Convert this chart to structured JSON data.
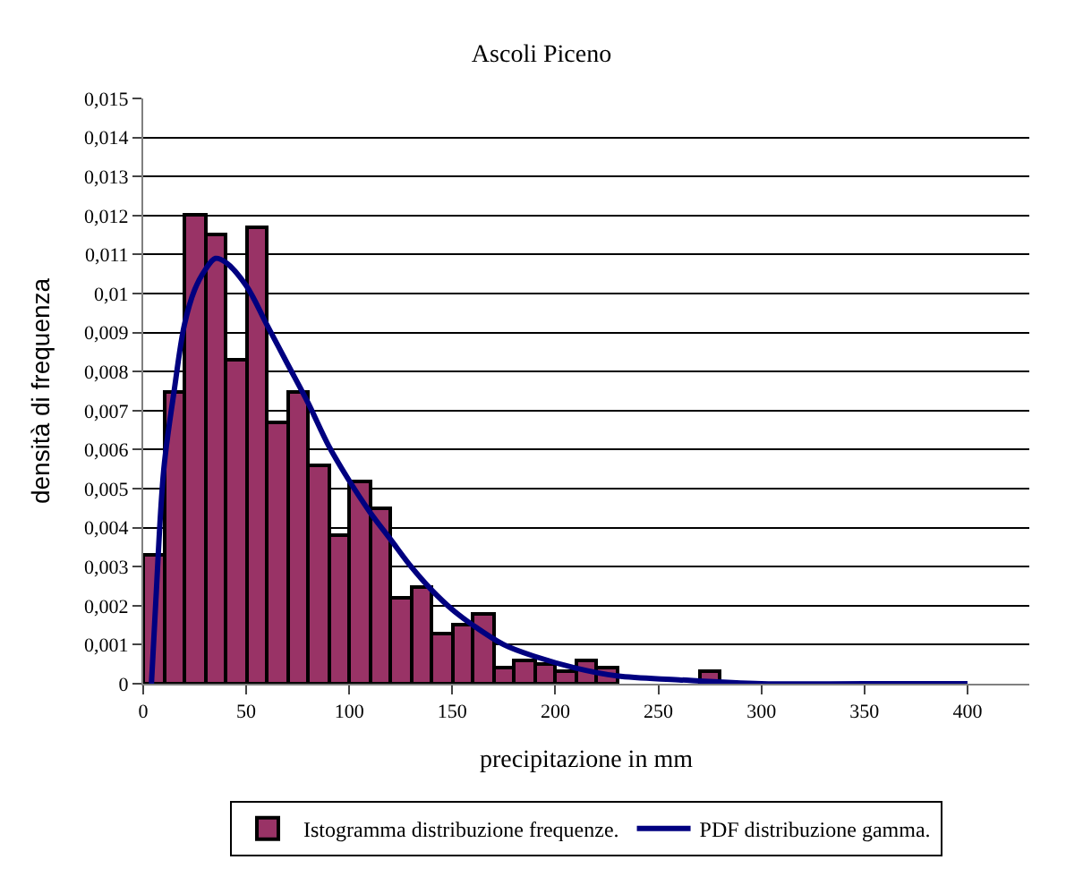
{
  "chart_data": {
    "type": "histogram",
    "title": "Ascoli Piceno",
    "xlabel": "precipitazione in mm",
    "ylabel": "densità di frequenza",
    "bins": [
      0,
      10,
      20,
      30,
      40,
      50,
      60,
      70,
      80,
      90,
      100,
      110,
      120,
      130,
      140,
      150,
      160,
      170,
      180,
      190,
      200,
      210,
      220,
      230,
      240,
      250,
      260,
      270,
      280
    ],
    "series": [
      {
        "name": "Istogramma distribuzione frequenze.",
        "color": "#993366",
        "values": [
          0.0033,
          0.0075,
          0.012,
          0.0115,
          0.0083,
          0.0117,
          0.0067,
          0.0075,
          0.0056,
          0.0038,
          0.0052,
          0.0045,
          0.0022,
          0.0025,
          0.0013,
          0.0015,
          0.0018,
          0.0004,
          0.0006,
          0.0005,
          0.0003,
          0.0006,
          0.0004,
          0,
          0,
          0,
          0,
          0.0003
        ]
      },
      {
        "name": "PDF distribuzione gamma.",
        "type": "line",
        "color": "#000080",
        "x": [
          4,
          6,
          10,
          15,
          20,
          25,
          30,
          35,
          40,
          50,
          60,
          70,
          80,
          90,
          100,
          110,
          120,
          130,
          140,
          150,
          160,
          175,
          190,
          210,
          230,
          260,
          300,
          350,
          400
        ],
        "values": [
          0,
          0.002,
          0.0055,
          0.0075,
          0.0092,
          0.0101,
          0.0106,
          0.0109,
          0.0108,
          0.0102,
          0.0092,
          0.0082,
          0.0072,
          0.0061,
          0.0052,
          0.0044,
          0.0037,
          0.003,
          0.0024,
          0.0019,
          0.0015,
          0.001,
          0.0007,
          0.0004,
          0.0002,
          0.0001,
          0,
          0,
          0
        ]
      }
    ],
    "xlim": [
      0,
      430
    ],
    "xticks": [
      0,
      50,
      100,
      150,
      200,
      250,
      300,
      350,
      400
    ],
    "ylim": [
      0,
      0.015
    ],
    "yticks": [
      {
        "value": 0,
        "label": "0"
      },
      {
        "value": 0.001,
        "label": "0,001"
      },
      {
        "value": 0.002,
        "label": "0,002"
      },
      {
        "value": 0.003,
        "label": "0,003"
      },
      {
        "value": 0.004,
        "label": "0,004"
      },
      {
        "value": 0.005,
        "label": "0,005"
      },
      {
        "value": 0.006,
        "label": "0,006"
      },
      {
        "value": 0.007,
        "label": "0,007"
      },
      {
        "value": 0.008,
        "label": "0,008"
      },
      {
        "value": 0.009,
        "label": "0,009"
      },
      {
        "value": 0.01,
        "label": "0,01"
      },
      {
        "value": 0.011,
        "label": "0,011"
      },
      {
        "value": 0.012,
        "label": "0,012"
      },
      {
        "value": 0.013,
        "label": "0,013"
      },
      {
        "value": 0.014,
        "label": "0,014"
      },
      {
        "value": 0.015,
        "label": "0,015"
      }
    ],
    "grid": "y",
    "legend": "bottom",
    "marker": "none",
    "line_style": "solid"
  }
}
